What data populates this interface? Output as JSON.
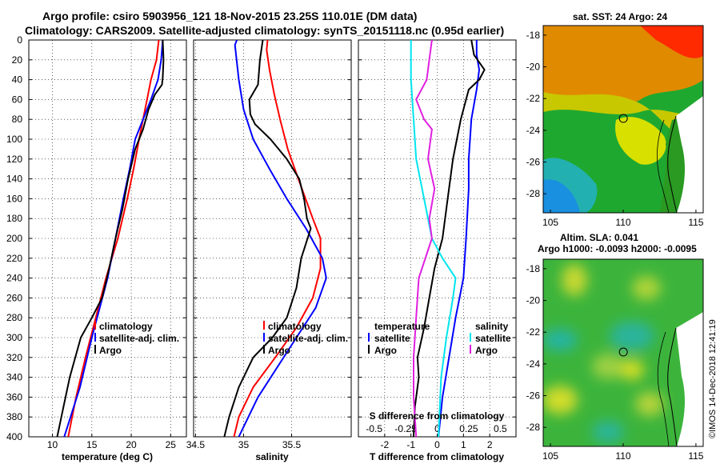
{
  "header": {
    "line1": "Argo profile: csiro 5903956_121 18-Nov-2015 23.25S 110.01E (DM data)",
    "line2": "Climatology: CARS2009. Satellite-adjusted climatology: synTS_20151118.nc (0.95d earlier)"
  },
  "watermark": "©IMOS 14-Dec-2018 12:41:19",
  "colors": {
    "red": "#ff0000",
    "blue": "#0000ff",
    "black": "#000000",
    "cyan": "#00e5ee",
    "magenta": "#e020e0"
  },
  "depth_ticks": [
    "0",
    "20",
    "40",
    "60",
    "80",
    "100",
    "120",
    "140",
    "160",
    "180",
    "200",
    "220",
    "240",
    "260",
    "280",
    "300",
    "320",
    "340",
    "360",
    "380",
    "400"
  ],
  "chart_data": [
    {
      "type": "line",
      "name": "temperature",
      "xlabel": "temperature (deg C)",
      "ylabel": "",
      "xlim": [
        7,
        27
      ],
      "ylim": [
        400,
        0
      ],
      "xticks": [
        10,
        15,
        20,
        25
      ],
      "xtick_labels": [
        "10",
        "15",
        "20",
        "25"
      ],
      "legend": [
        "climatology",
        "satellite-adj. clim.",
        "Argo"
      ],
      "series": [
        {
          "name": "climatology",
          "color": "red",
          "points": [
            [
              23.5,
              0
            ],
            [
              23.2,
              20
            ],
            [
              22.5,
              40
            ],
            [
              22.0,
              60
            ],
            [
              21.5,
              80
            ],
            [
              21.0,
              100
            ],
            [
              20.3,
              130
            ],
            [
              19.5,
              160
            ],
            [
              18.3,
              200
            ],
            [
              16.8,
              240
            ],
            [
              15.5,
              280
            ],
            [
              14.2,
              320
            ],
            [
              13.0,
              360
            ],
            [
              12.0,
              400
            ]
          ]
        },
        {
          "name": "satellite-adj. clim.",
          "color": "blue",
          "points": [
            [
              24.0,
              0
            ],
            [
              23.8,
              20
            ],
            [
              23.4,
              40
            ],
            [
              22.5,
              60
            ],
            [
              21.5,
              80
            ],
            [
              20.5,
              100
            ],
            [
              19.8,
              130
            ],
            [
              19.0,
              160
            ],
            [
              18.0,
              200
            ],
            [
              17.0,
              240
            ],
            [
              16.0,
              270
            ],
            [
              15.0,
              300
            ],
            [
              13.5,
              350
            ],
            [
              11.5,
              400
            ]
          ]
        },
        {
          "name": "Argo",
          "color": "black",
          "points": [
            [
              24.0,
              0
            ],
            [
              24.1,
              20
            ],
            [
              24.0,
              38
            ],
            [
              23.9,
              45
            ],
            [
              23.0,
              55
            ],
            [
              22.2,
              70
            ],
            [
              21.5,
              90
            ],
            [
              20.5,
              110
            ],
            [
              19.6,
              140
            ],
            [
              18.9,
              170
            ],
            [
              18.0,
              200
            ],
            [
              17.2,
              230
            ],
            [
              16.3,
              260
            ],
            [
              15.0,
              280
            ],
            [
              13.6,
              300
            ],
            [
              12.2,
              340
            ],
            [
              11.4,
              370
            ],
            [
              10.6,
              400
            ]
          ]
        }
      ]
    },
    {
      "type": "line",
      "name": "salinity",
      "xlabel": "salinity",
      "ylabel": "",
      "xlim": [
        34.48,
        36.12
      ],
      "ylim": [
        400,
        0
      ],
      "xticks": [
        34.5,
        35,
        35.5
      ],
      "xtick_labels": [
        "34.5",
        "35",
        "35.5"
      ],
      "legend": [
        "climatology",
        "satellite-adj. clim.",
        "Argo"
      ],
      "series": [
        {
          "name": "climatology",
          "color": "red",
          "points": [
            [
              35.25,
              0
            ],
            [
              35.24,
              10
            ],
            [
              35.27,
              30
            ],
            [
              35.32,
              55
            ],
            [
              35.38,
              80
            ],
            [
              35.46,
              110
            ],
            [
              35.57,
              140
            ],
            [
              35.72,
              180
            ],
            [
              35.8,
              200
            ],
            [
              35.8,
              230
            ],
            [
              35.72,
              260
            ],
            [
              35.55,
              290
            ],
            [
              35.33,
              320
            ],
            [
              35.1,
              350
            ],
            [
              34.95,
              380
            ],
            [
              34.9,
              400
            ]
          ]
        },
        {
          "name": "satellite-adj. clim.",
          "color": "blue",
          "points": [
            [
              34.93,
              0
            ],
            [
              34.91,
              5
            ],
            [
              34.95,
              40
            ],
            [
              35.0,
              70
            ],
            [
              35.1,
              100
            ],
            [
              35.27,
              130
            ],
            [
              35.45,
              160
            ],
            [
              35.65,
              190
            ],
            [
              35.82,
              220
            ],
            [
              35.86,
              240
            ],
            [
              35.75,
              270
            ],
            [
              35.55,
              300
            ],
            [
              35.35,
              330
            ],
            [
              35.15,
              360
            ],
            [
              35.0,
              390
            ],
            [
              34.95,
              400
            ]
          ]
        },
        {
          "name": "Argo",
          "color": "black",
          "points": [
            [
              35.2,
              0
            ],
            [
              35.17,
              20
            ],
            [
              35.15,
              45
            ],
            [
              35.06,
              60
            ],
            [
              35.07,
              75
            ],
            [
              35.12,
              85
            ],
            [
              35.28,
              100
            ],
            [
              35.45,
              120
            ],
            [
              35.58,
              140
            ],
            [
              35.63,
              160
            ],
            [
              35.66,
              180
            ],
            [
              35.7,
              190
            ],
            [
              35.6,
              220
            ],
            [
              35.55,
              250
            ],
            [
              35.45,
              280
            ],
            [
              35.3,
              300
            ],
            [
              35.1,
              320
            ],
            [
              34.95,
              350
            ],
            [
              34.85,
              380
            ],
            [
              34.8,
              400
            ]
          ]
        }
      ]
    },
    {
      "type": "line",
      "name": "difference from climatology",
      "xlabel": "T difference from climatology",
      "secondary_xlabel": "S difference from climatology",
      "ylabel": "",
      "xlim": [
        -3,
        3
      ],
      "ylim": [
        400,
        0
      ],
      "xticks": [
        -2,
        -1,
        0,
        1,
        2
      ],
      "xtick_labels": [
        "-2",
        "-1",
        "0",
        "1",
        "2"
      ],
      "secondary_xticks": [
        -0.5,
        -0.25,
        0,
        0.25,
        0.5
      ],
      "secondary_xtick_labels": [
        "-0.5",
        "-0.25",
        "0",
        "0.25",
        "0.5"
      ],
      "legend_temperature_title": "temperature",
      "legend_salinity_title": "salinity",
      "legend_temperature": [
        "satellite",
        "Argo"
      ],
      "legend_salinity": [
        "satellite",
        "Argo"
      ],
      "series": [
        {
          "name": "temperature satellite",
          "color": "blue",
          "points": [
            [
              1.5,
              0
            ],
            [
              1.5,
              15
            ],
            [
              1.6,
              30
            ],
            [
              1.5,
              50
            ],
            [
              1.3,
              80
            ],
            [
              1.2,
              120
            ],
            [
              1.2,
              150
            ],
            [
              1.1,
              200
            ],
            [
              1.0,
              240
            ],
            [
              0.7,
              280
            ],
            [
              0.45,
              320
            ],
            [
              0.2,
              360
            ],
            [
              0.05,
              400
            ]
          ]
        },
        {
          "name": "temperature Argo",
          "color": "black",
          "points": [
            [
              1.3,
              0
            ],
            [
              1.4,
              15
            ],
            [
              1.8,
              30
            ],
            [
              1.6,
              40
            ],
            [
              1.2,
              50
            ],
            [
              0.9,
              80
            ],
            [
              0.6,
              120
            ],
            [
              0.4,
              160
            ],
            [
              0.2,
              200
            ],
            [
              -0.1,
              230
            ],
            [
              -0.3,
              260
            ],
            [
              -0.5,
              290
            ],
            [
              -0.75,
              320
            ],
            [
              -0.7,
              340
            ],
            [
              -0.85,
              370
            ],
            [
              -0.9,
              400
            ]
          ]
        },
        {
          "name": "salinity satellite",
          "color": "cyan",
          "points": [
            [
              -1.0,
              0
            ],
            [
              -1.0,
              15
            ],
            [
              -1.0,
              40
            ],
            [
              -0.9,
              80
            ],
            [
              -0.8,
              120
            ],
            [
              -0.5,
              160
            ],
            [
              -0.2,
              200
            ],
            [
              0.2,
              220
            ],
            [
              0.7,
              240
            ],
            [
              0.6,
              260
            ],
            [
              0.35,
              300
            ],
            [
              0.15,
              340
            ],
            [
              0.05,
              400
            ]
          ]
        },
        {
          "name": "salinity Argo",
          "color": "magenta",
          "points": [
            [
              -0.2,
              0
            ],
            [
              -0.3,
              20
            ],
            [
              -0.4,
              40
            ],
            [
              -0.8,
              60
            ],
            [
              -0.5,
              80
            ],
            [
              -0.2,
              90
            ],
            [
              -0.35,
              120
            ],
            [
              -0.1,
              150
            ],
            [
              -0.3,
              180
            ],
            [
              -0.2,
              200
            ],
            [
              -0.7,
              240
            ],
            [
              -0.8,
              280
            ],
            [
              -0.9,
              320
            ],
            [
              -0.9,
              360
            ],
            [
              -0.8,
              400
            ]
          ]
        }
      ]
    },
    {
      "type": "heatmap",
      "name": "sst map",
      "title": "sat. SST: 24 Argo: 24",
      "xlim": [
        104.5,
        115.5
      ],
      "ylim": [
        -29.2,
        -17.4
      ],
      "xticks": [
        105,
        110,
        115
      ],
      "xtick_labels": [
        "105",
        "110",
        "115"
      ],
      "yticks": [
        -18,
        -20,
        -22,
        -24,
        -26,
        -28
      ],
      "ytick_labels": [
        "-18",
        "-20",
        "-22",
        "-24",
        "-26",
        "-28"
      ],
      "marker": {
        "lon": 110.01,
        "lat": -23.25
      }
    },
    {
      "type": "heatmap",
      "name": "sla map",
      "title": "Altim. SLA: 0.041",
      "subtitle": "Argo h1000: -0.0093 h2000: -0.0095",
      "xlim": [
        104.5,
        115.5
      ],
      "ylim": [
        -29.2,
        -17.4
      ],
      "xticks": [
        105,
        110,
        115
      ],
      "xtick_labels": [
        "105",
        "110",
        "115"
      ],
      "yticks": [
        -18,
        -20,
        -22,
        -24,
        -26,
        -28
      ],
      "ytick_labels": [
        "-18",
        "-20",
        "-22",
        "-24",
        "-26",
        "-28"
      ],
      "marker": {
        "lon": 110.01,
        "lat": -23.25
      }
    }
  ]
}
